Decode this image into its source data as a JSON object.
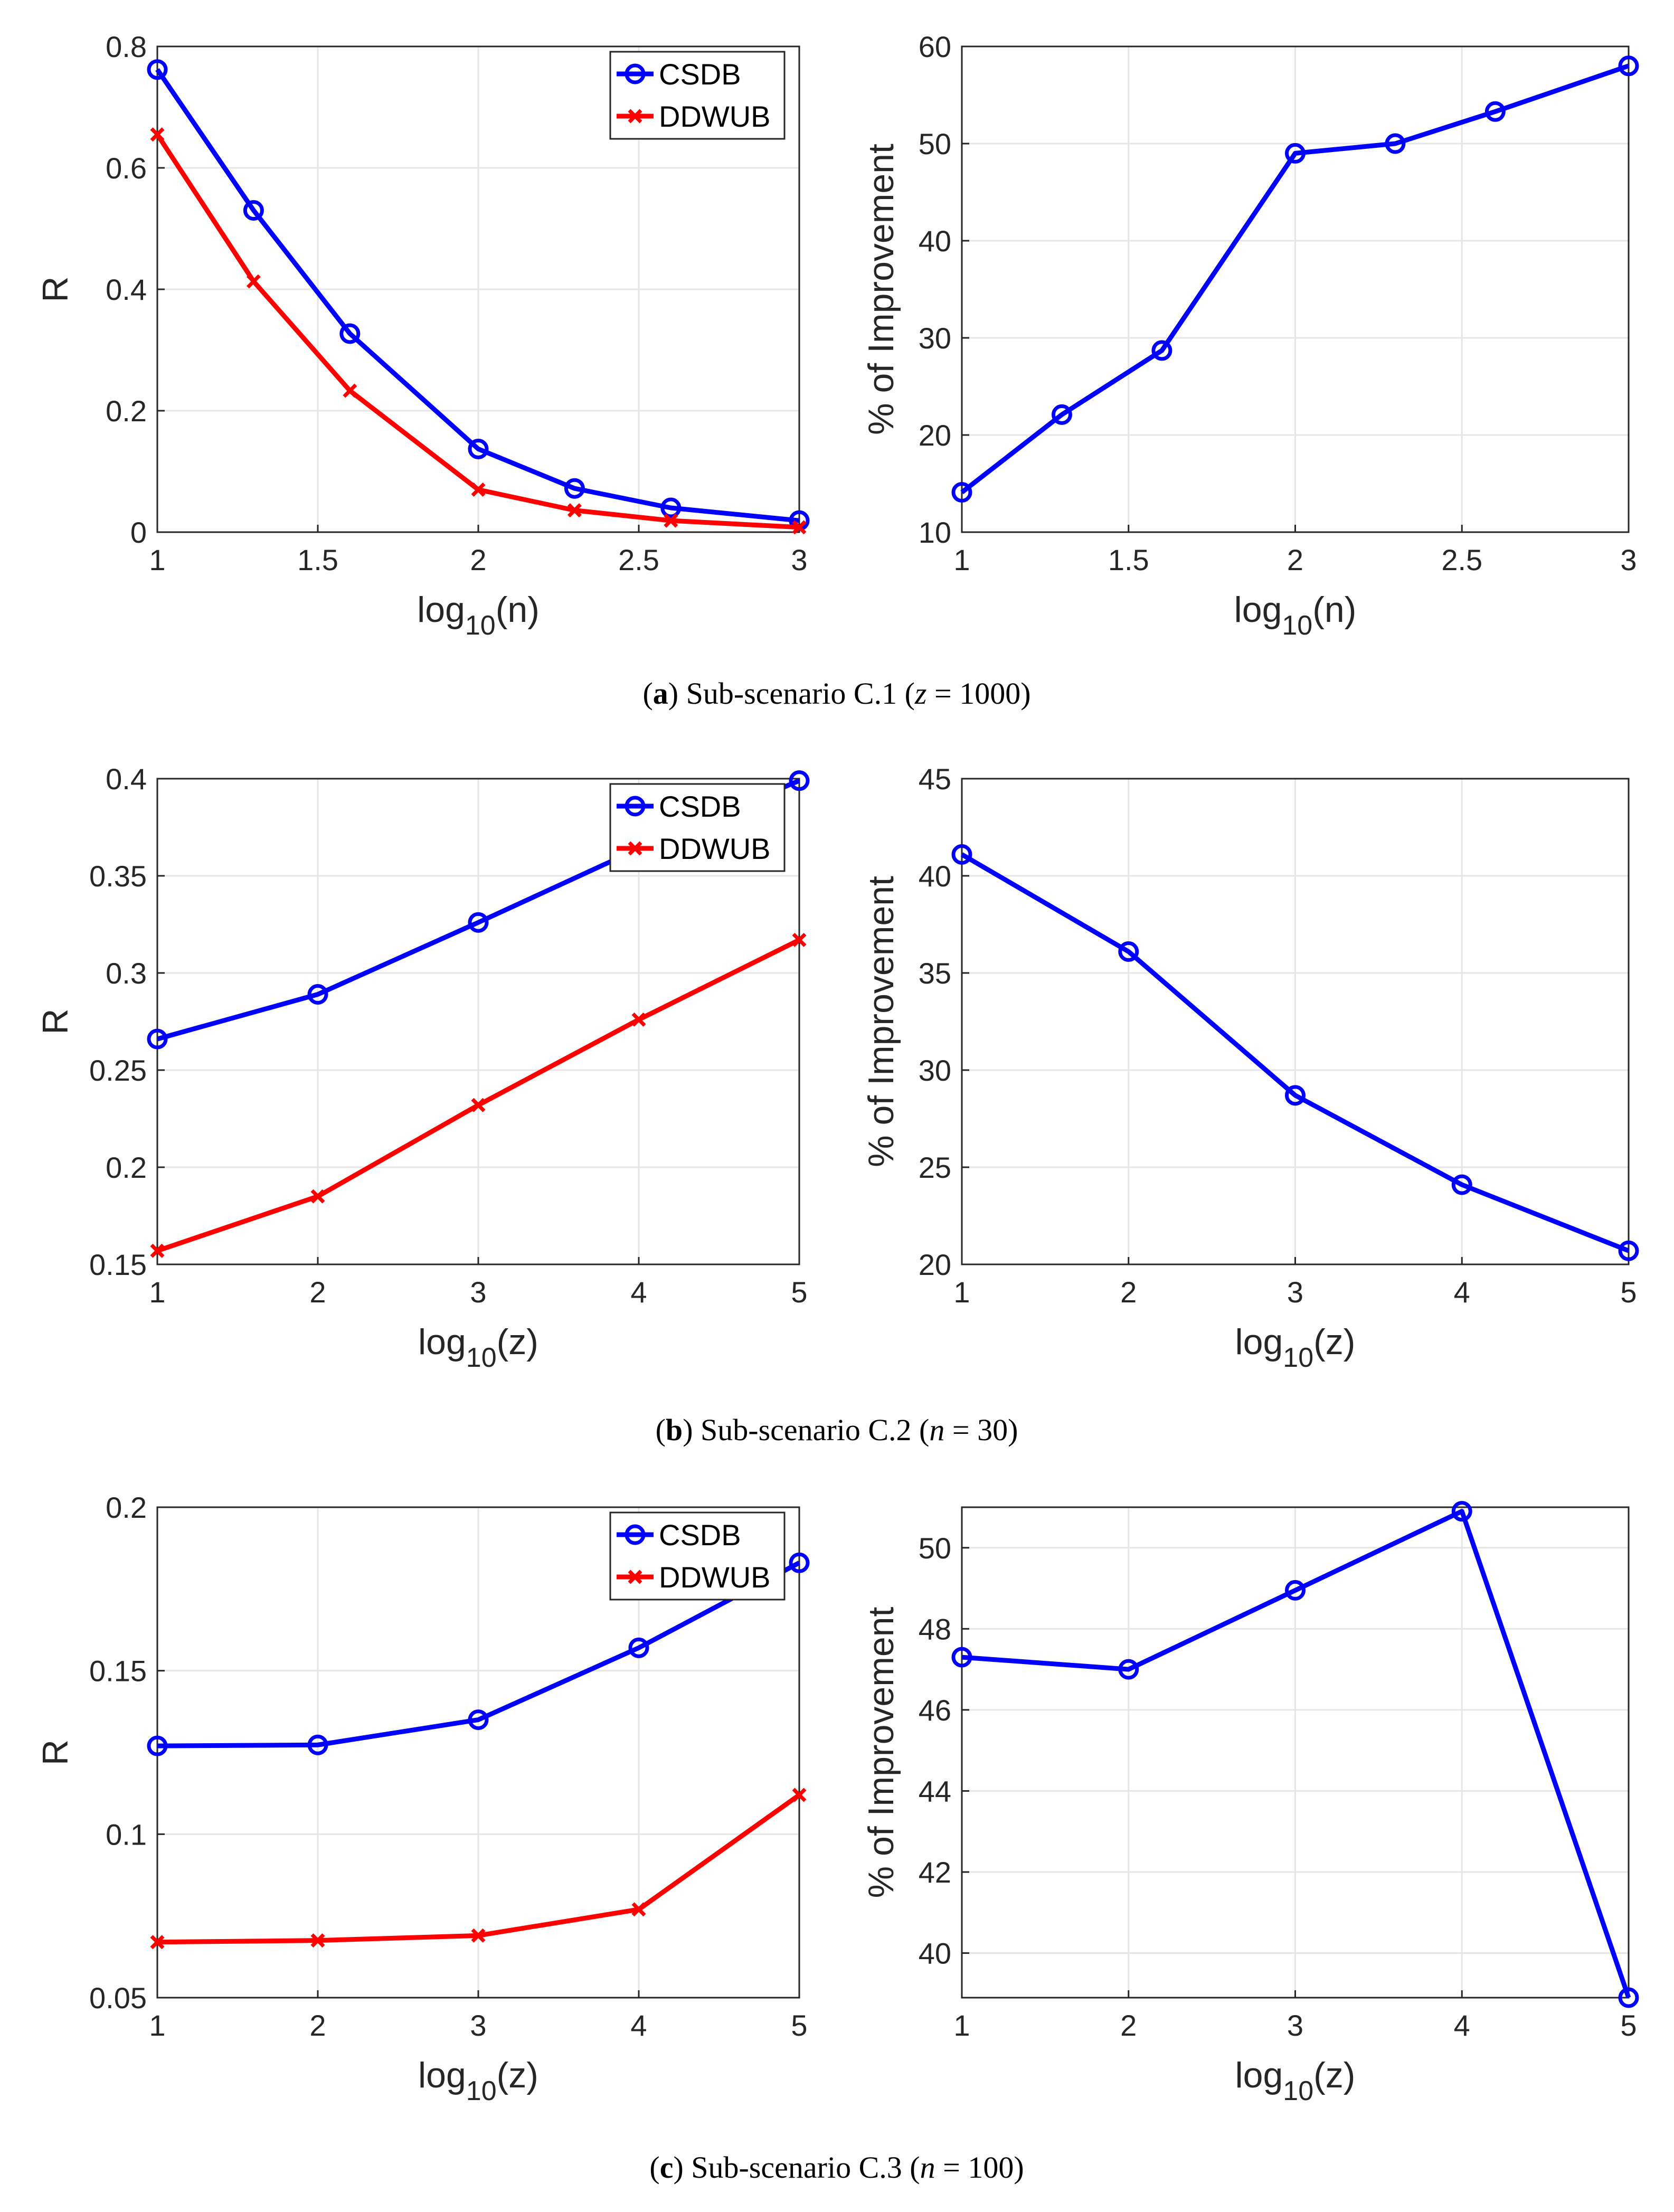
{
  "colors": {
    "csdb": "#0000ff",
    "ddwub": "#ff0000",
    "grid": "#e6e6e6",
    "axis": "#262626"
  },
  "chart_data": [
    {
      "id": "a-left",
      "type": "line",
      "xlabel": "log10(n)",
      "ylabel": "R",
      "xlim": [
        1,
        3
      ],
      "ylim": [
        0,
        0.8
      ],
      "xticks": [
        1,
        1.5,
        2,
        2.5,
        3
      ],
      "xtick_labels": [
        "1",
        "1.5",
        "2",
        "2.5",
        "3"
      ],
      "yticks": [
        0,
        0.2,
        0.4,
        0.6,
        0.8
      ],
      "ytick_labels": [
        "0",
        "0.2",
        "0.4",
        "0.6",
        "0.8"
      ],
      "legend": "top-right",
      "x": [
        1,
        1.3,
        1.6,
        2,
        2.3,
        2.6,
        3
      ],
      "series": [
        {
          "name": "CSDB",
          "marker": "o",
          "values": [
            0.762,
            0.53,
            0.327,
            0.137,
            0.072,
            0.04,
            0.019
          ]
        },
        {
          "name": "DDWUB",
          "marker": "x",
          "values": [
            0.655,
            0.413,
            0.233,
            0.07,
            0.036,
            0.019,
            0.008
          ]
        }
      ]
    },
    {
      "id": "a-right",
      "type": "line",
      "xlabel": "log10(n)",
      "ylabel": "% of Improvement",
      "xlim": [
        1,
        3
      ],
      "ylim": [
        10,
        60
      ],
      "xticks": [
        1,
        1.5,
        2,
        2.5,
        3
      ],
      "xtick_labels": [
        "1",
        "1.5",
        "2",
        "2.5",
        "3"
      ],
      "yticks": [
        10,
        20,
        30,
        40,
        50,
        60
      ],
      "ytick_labels": [
        "10",
        "20",
        "30",
        "40",
        "50",
        "60"
      ],
      "x": [
        1,
        1.3,
        1.6,
        2,
        2.3,
        2.6,
        3
      ],
      "series": [
        {
          "name": "Improvement",
          "marker": "o",
          "values": [
            14.1,
            22.1,
            28.7,
            49.0,
            50.0,
            53.3,
            58.0
          ]
        }
      ]
    },
    {
      "id": "b-left",
      "type": "line",
      "xlabel": "log10(z)",
      "ylabel": "R",
      "xlim": [
        1,
        5
      ],
      "ylim": [
        0.15,
        0.4
      ],
      "xticks": [
        1,
        2,
        3,
        4,
        5
      ],
      "xtick_labels": [
        "1",
        "2",
        "3",
        "4",
        "5"
      ],
      "yticks": [
        0.15,
        0.2,
        0.25,
        0.3,
        0.35,
        0.4
      ],
      "ytick_labels": [
        "0.15",
        "0.2",
        "0.25",
        "0.3",
        "0.35",
        "0.4"
      ],
      "legend": "top-right",
      "x": [
        1,
        2,
        3,
        4,
        5
      ],
      "series": [
        {
          "name": "CSDB",
          "marker": "o",
          "values": [
            0.266,
            0.289,
            0.326,
            0.364,
            0.399
          ]
        },
        {
          "name": "DDWUB",
          "marker": "x",
          "values": [
            0.157,
            0.185,
            0.232,
            0.276,
            0.317
          ]
        }
      ]
    },
    {
      "id": "b-right",
      "type": "line",
      "xlabel": "log10(z)",
      "ylabel": "% of Improvement",
      "xlim": [
        1,
        5
      ],
      "ylim": [
        20,
        45
      ],
      "xticks": [
        1,
        2,
        3,
        4,
        5
      ],
      "xtick_labels": [
        "1",
        "2",
        "3",
        "4",
        "5"
      ],
      "yticks": [
        20,
        25,
        30,
        35,
        40,
        45
      ],
      "ytick_labels": [
        "20",
        "25",
        "30",
        "35",
        "40",
        "45"
      ],
      "x": [
        1,
        2,
        3,
        4,
        5
      ],
      "series": [
        {
          "name": "Improvement",
          "marker": "o",
          "values": [
            41.1,
            36.1,
            28.7,
            24.1,
            20.7
          ]
        }
      ]
    },
    {
      "id": "c-left",
      "type": "line",
      "xlabel": "log10(z)",
      "ylabel": "R",
      "xlim": [
        1,
        5
      ],
      "ylim": [
        0.05,
        0.2
      ],
      "xticks": [
        1,
        2,
        3,
        4,
        5
      ],
      "xtick_labels": [
        "1",
        "2",
        "3",
        "4",
        "5"
      ],
      "yticks": [
        0.05,
        0.1,
        0.15,
        0.2
      ],
      "ytick_labels": [
        "0.05",
        "0.1",
        "0.15",
        "0.2"
      ],
      "legend": "top-right",
      "x": [
        1,
        2,
        3,
        4,
        5
      ],
      "series": [
        {
          "name": "CSDB",
          "marker": "o",
          "values": [
            0.127,
            0.1273,
            0.135,
            0.157,
            0.183
          ]
        },
        {
          "name": "DDWUB",
          "marker": "x",
          "values": [
            0.067,
            0.0675,
            0.069,
            0.077,
            0.112
          ]
        }
      ]
    },
    {
      "id": "c-right",
      "type": "line",
      "xlabel": "log10(z)",
      "ylabel": "% of Improvement",
      "xlim": [
        1,
        5
      ],
      "ylim": [
        38.9,
        51
      ],
      "xticks": [
        1,
        2,
        3,
        4,
        5
      ],
      "xtick_labels": [
        "1",
        "2",
        "3",
        "4",
        "5"
      ],
      "yticks": [
        40,
        42,
        44,
        46,
        48,
        50
      ],
      "ytick_labels": [
        "40",
        "42",
        "44",
        "46",
        "48",
        "50"
      ],
      "x": [
        1,
        2,
        3,
        4,
        5
      ],
      "series": [
        {
          "name": "Improvement",
          "marker": "o",
          "values": [
            47.3,
            47.0,
            48.95,
            50.9,
            38.9
          ]
        }
      ]
    }
  ],
  "captions": [
    {
      "letter": "a",
      "text": "Sub-scenario C.1",
      "var": "z",
      "value": "1000"
    },
    {
      "letter": "b",
      "text": "Sub-scenario C.2",
      "var": "n",
      "value": "30"
    },
    {
      "letter": "c",
      "text": "Sub-scenario C.3",
      "var": "n",
      "value": "100"
    }
  ]
}
